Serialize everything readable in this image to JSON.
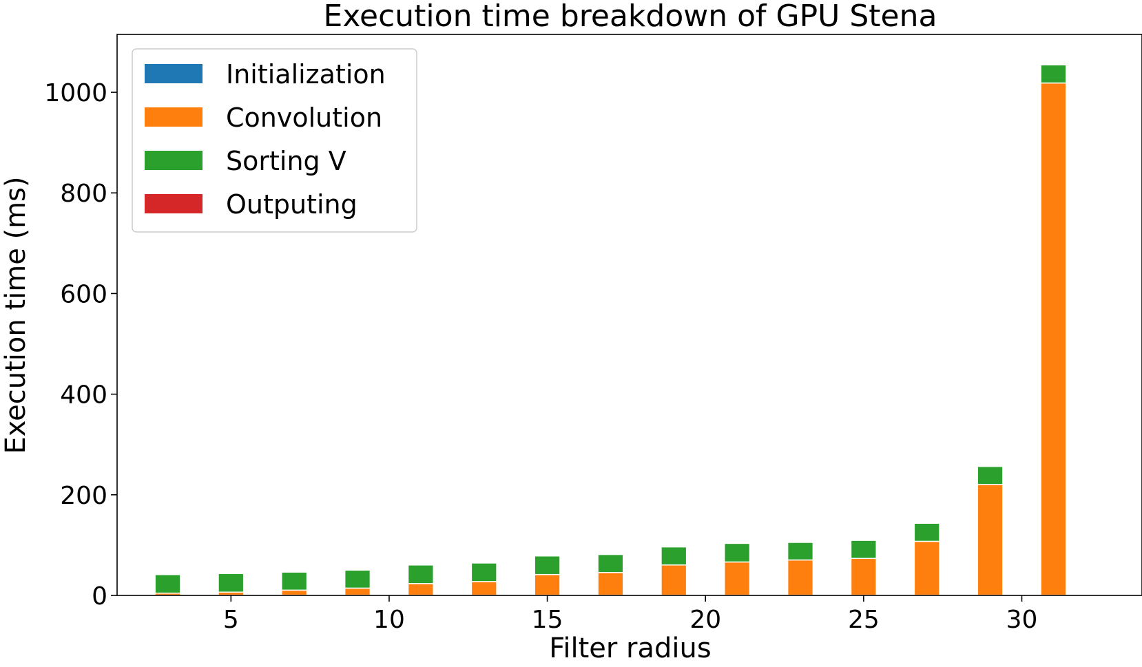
{
  "chart_data": {
    "type": "bar",
    "stacked": true,
    "title": "Execution time breakdown of GPU Stena",
    "xlabel": "Filter radius",
    "ylabel": "Execution time (ms)",
    "x": [
      3,
      5,
      7,
      9,
      11,
      13,
      15,
      17,
      19,
      21,
      23,
      25,
      27,
      29,
      31
    ],
    "xlim": [
      1.4,
      33.8
    ],
    "ylim": [
      0,
      1115
    ],
    "xticks": [
      5,
      10,
      15,
      20,
      25,
      30
    ],
    "yticks": [
      0,
      200,
      400,
      600,
      800,
      1000
    ],
    "grid": false,
    "legend_position": "top-left",
    "series": [
      {
        "name": "Initialization",
        "color": "#1f77b4",
        "values": [
          0.5,
          0.5,
          0.5,
          0.5,
          0.5,
          0.5,
          0.5,
          0.5,
          0.5,
          0.5,
          0.5,
          0.5,
          0.5,
          0.5,
          0.5
        ]
      },
      {
        "name": "Convolution",
        "color": "#ff7f0e",
        "values": [
          4,
          6,
          10,
          14,
          23,
          27,
          41,
          45,
          60,
          66,
          70,
          73,
          107,
          220,
          1018
        ]
      },
      {
        "name": "Sorting V",
        "color": "#2ca02c",
        "values": [
          37,
          37,
          36,
          36,
          37,
          37,
          37,
          36,
          36,
          37,
          35,
          36,
          36,
          36,
          36
        ]
      },
      {
        "name": "Outputing",
        "color": "#d62728",
        "values": [
          0.8,
          0.8,
          0.8,
          0.8,
          2,
          0.8,
          0.8,
          0.8,
          0.8,
          0.8,
          0.8,
          0.8,
          2,
          2,
          1
        ]
      }
    ]
  }
}
